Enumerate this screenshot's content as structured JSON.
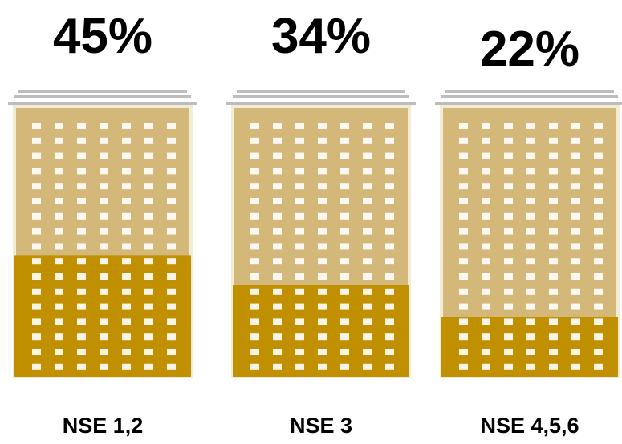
{
  "chart_data": {
    "type": "bar",
    "categories": [
      "NSE 1,2",
      "NSE 3",
      "NSE 4,5,6"
    ],
    "values": [
      45,
      34,
      22
    ],
    "value_labels": [
      "45%",
      "34%",
      "22%"
    ],
    "ylim": [
      0,
      100
    ],
    "color": "#c09000",
    "background_color": "#d4b87a"
  }
}
